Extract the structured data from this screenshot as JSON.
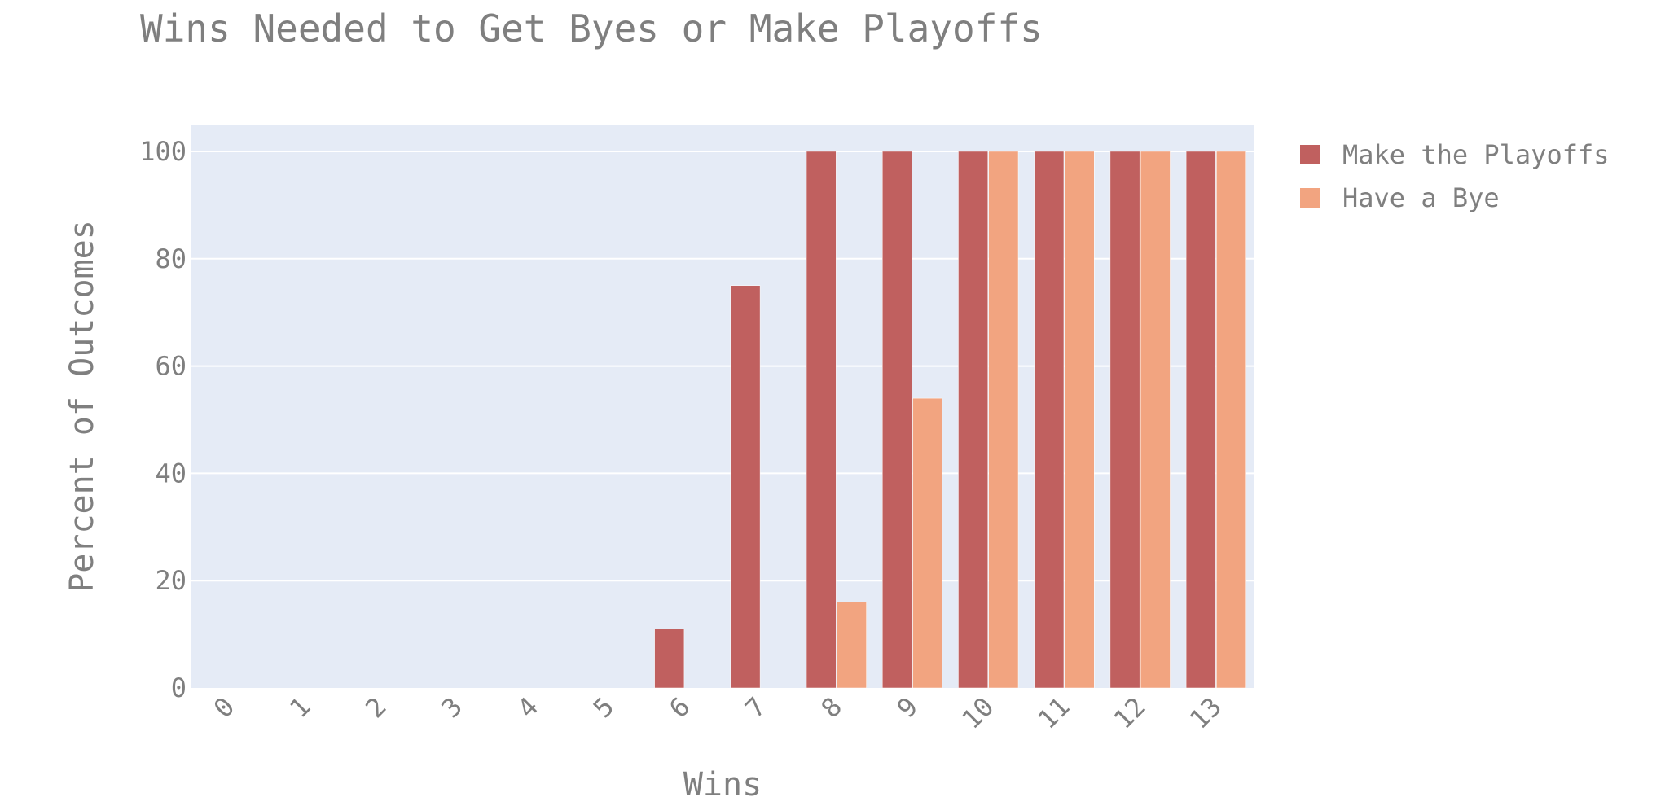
{
  "chart_data": {
    "type": "bar",
    "title": "Wins Needed to Get Byes or Make Playoffs",
    "xlabel": "Wins",
    "ylabel": "Percent of Outcomes",
    "categories": [
      "0",
      "1",
      "2",
      "3",
      "4",
      "5",
      "6",
      "7",
      "8",
      "9",
      "10",
      "11",
      "12",
      "13"
    ],
    "series": [
      {
        "name": "Make the Playoffs",
        "color": "#c0605f",
        "values": [
          0,
          0,
          0,
          0,
          0,
          0,
          11,
          75,
          100,
          100,
          100,
          100,
          100,
          100
        ]
      },
      {
        "name": "Have a Bye",
        "color": "#f2a480",
        "values": [
          0,
          0,
          0,
          0,
          0,
          0,
          0,
          0,
          16,
          54,
          100,
          100,
          100,
          100
        ]
      }
    ],
    "ylim": [
      0,
      105
    ],
    "yticks": [
      0,
      20,
      40,
      60,
      80,
      100
    ],
    "grid": true,
    "legend_position": "top-right",
    "plot_background": "#e5ebf6",
    "gridline_color": "#ffffff",
    "text_color": "#7f7f7f"
  }
}
